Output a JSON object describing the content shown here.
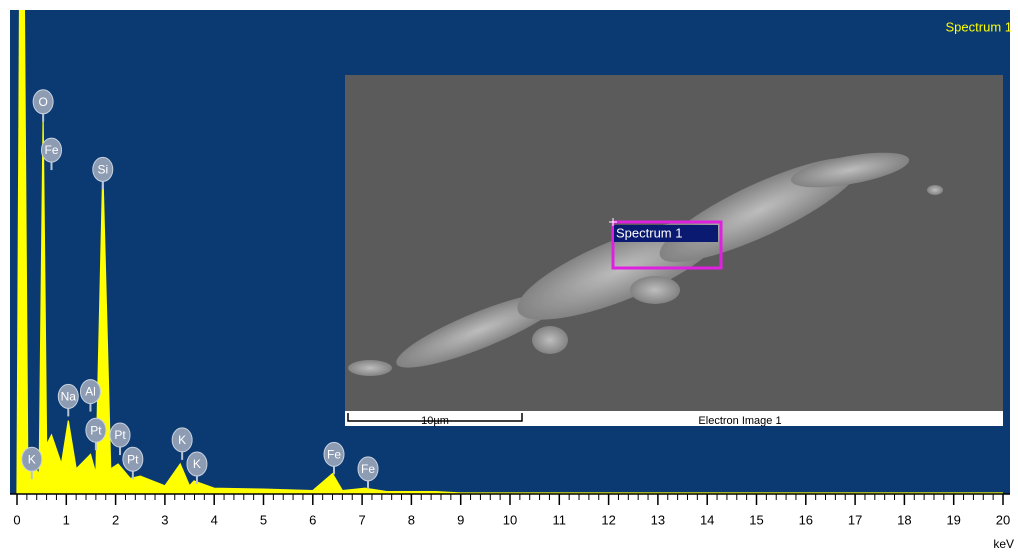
{
  "chart_data": {
    "type": "area",
    "title": "Spectrum 1",
    "x_label": "keV",
    "color": "#ffff00",
    "background": "#0b3a72",
    "x": [
      0,
      0.05,
      0.15,
      0.22,
      0.3,
      0.45,
      0.53,
      0.6,
      0.7,
      0.9,
      1.04,
      1.2,
      1.49,
      1.6,
      1.74,
      1.9,
      2.05,
      2.3,
      2.5,
      3.0,
      3.31,
      3.5,
      3.59,
      4.0,
      5.0,
      6.0,
      6.4,
      6.6,
      7.06,
      7.5,
      8.5,
      9.0,
      20.0
    ],
    "values": [
      0,
      100,
      100,
      5,
      6,
      4,
      78,
      10,
      12,
      6,
      15,
      5,
      8,
      4,
      67,
      5,
      6,
      3,
      3.5,
      1.5,
      6,
      1.5,
      2.5,
      1,
      0.8,
      0.5,
      4,
      0.5,
      1,
      0.3,
      0.3,
      0,
      0
    ],
    "xlim": [
      0,
      20
    ],
    "ylim": [
      0,
      100
    ],
    "xticks": [
      0,
      1,
      2,
      3,
      4,
      5,
      6,
      7,
      8,
      9,
      10,
      11,
      12,
      13,
      14,
      15,
      16,
      17,
      18,
      19,
      20
    ],
    "annotations": [
      {
        "label": "K",
        "x": 0.3,
        "y": 7
      },
      {
        "label": "O",
        "x": 0.53,
        "y": 81
      },
      {
        "label": "Fe",
        "x": 0.7,
        "y": 71
      },
      {
        "label": "Na",
        "x": 1.04,
        "y": 20
      },
      {
        "label": "Al",
        "x": 1.49,
        "y": 21
      },
      {
        "label": "Pt",
        "x": 1.6,
        "y": 13
      },
      {
        "label": "Si",
        "x": 1.74,
        "y": 67
      },
      {
        "label": "Pt",
        "x": 2.09,
        "y": 12
      },
      {
        "label": "Pt",
        "x": 2.35,
        "y": 7
      },
      {
        "label": "K",
        "x": 3.35,
        "y": 11
      },
      {
        "label": "K",
        "x": 3.65,
        "y": 6
      },
      {
        "label": "Fe",
        "x": 6.43,
        "y": 8
      },
      {
        "label": "Fe",
        "x": 7.12,
        "y": 5
      }
    ],
    "inset": {
      "selection_label": "Spectrum 1",
      "scale_bar": "10µm",
      "caption": "Electron Image 1"
    }
  }
}
